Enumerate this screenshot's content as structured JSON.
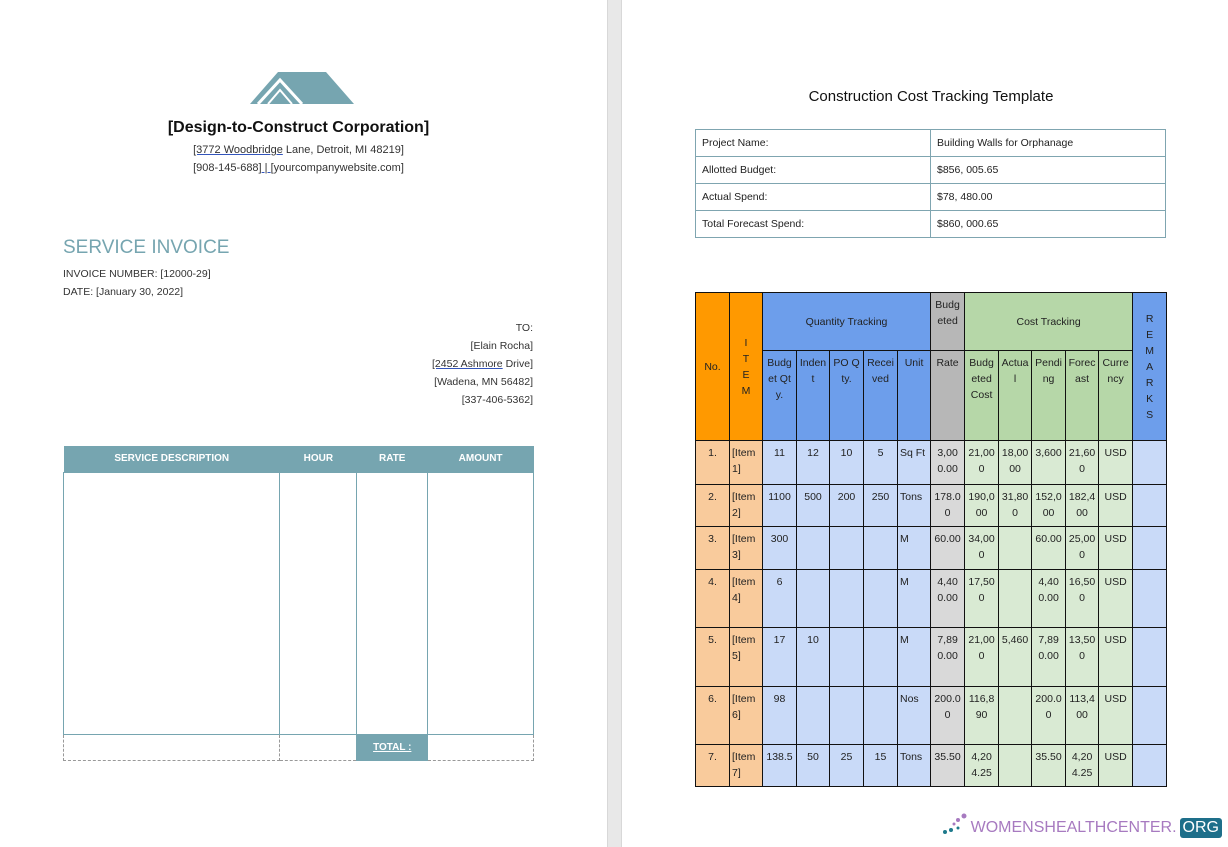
{
  "invoice": {
    "company": "[Design-to-Construct Corporation]",
    "address_part1": "[3772  Woodbridge",
    "address_part2": " Lane, Detroit, MI 48219]",
    "phone": "[908-145-688]",
    "separator": " | ",
    "website": " [yourcompanywebsite.com]",
    "title": "SERVICE INVOICE",
    "invoice_number": "INVOICE NUMBER: [12000-29]",
    "date": "DATE: [January 30, 2022]",
    "to": {
      "label": "TO:",
      "name": "[Elain Rocha]",
      "street_part1": "[2452  Ashmore",
      "street_part2": " Drive]",
      "city": "[Wadena, MN 56482]",
      "phone": "[337-406-5362]"
    },
    "columns": [
      "SERVICE DESCRIPTION",
      "HOUR",
      "RATE",
      "AMOUNT"
    ],
    "total_label": "TOTAL :",
    "brand_color": "#76a5b0"
  },
  "tracker": {
    "title": "Construction Cost Tracking Template",
    "info": [
      {
        "label": "Project Name:",
        "value": "Building Walls for Orphanage"
      },
      {
        "label": "Allotted Budget:",
        "value": "$856, 005.65"
      },
      {
        "label": "Actual Spend:",
        "value": "$78, 480.00"
      },
      {
        "label": "Total Forecast Spend:",
        "value": "$860, 000.65"
      }
    ],
    "headers": {
      "no": "No.",
      "item": "I T E M",
      "quantity_tracking": "Quantity Tracking",
      "budgeted": "Budgeted",
      "cost_tracking": "Cost Tracking",
      "remarks": "R E M A R K S",
      "budget_qty": "Budget Qty.",
      "indent": "Indent",
      "po_qty": "PO Qty.",
      "received": "Received",
      "unit": "Unit",
      "rate": "Rate",
      "budgeted_cost": "Budgeted Cost",
      "actual": "Actual",
      "pending": "Pending",
      "forecast": "Forecast",
      "currency": "Currency"
    },
    "rows": [
      {
        "no": "1.",
        "item": "[Item 1]",
        "budget_qty": "11",
        "indent": "12",
        "po_qty": "10",
        "received": "5",
        "unit": "Sq Ft",
        "rate": "3,000.00",
        "budgeted_cost": "21,000",
        "actual": "18,0000",
        "pending": "3,600",
        "forecast": "21,600",
        "currency": "USD"
      },
      {
        "no": "2.",
        "item": "[Item 2]",
        "budget_qty": "1100",
        "indent": "500",
        "po_qty": "200",
        "received": "250",
        "unit": "Tons",
        "rate": "178.00",
        "budgeted_cost": "190,000",
        "actual": "31,800",
        "pending": "152,000",
        "forecast": "182,400",
        "currency": "USD"
      },
      {
        "no": "3.",
        "item": "[Item 3]",
        "budget_qty": "300",
        "indent": "",
        "po_qty": "",
        "received": "",
        "unit": "M",
        "rate": "60.00",
        "budgeted_cost": "34,000",
        "actual": "",
        "pending": "60.00",
        "forecast": "25,000",
        "currency": "USD"
      },
      {
        "no": "4.",
        "item": "[Item 4]",
        "budget_qty": "6",
        "indent": "",
        "po_qty": "",
        "received": "",
        "unit": "M",
        "rate": "4,400.00",
        "budgeted_cost": "17,500",
        "actual": "",
        "pending": "4,400.00",
        "forecast": "16,500",
        "currency": "USD"
      },
      {
        "no": "5.",
        "item": "[Item 5]",
        "budget_qty": "17",
        "indent": "10",
        "po_qty": "",
        "received": "",
        "unit": "M",
        "rate": "7,890.00",
        "budgeted_cost": "21,000",
        "actual": "5,460",
        "pending": "7,890.00",
        "forecast": "13,500",
        "currency": "USD"
      },
      {
        "no": "6.",
        "item": "[Item 6]",
        "budget_qty": "98",
        "indent": "",
        "po_qty": "",
        "received": "",
        "unit": "Nos",
        "rate": "200.00",
        "budgeted_cost": "116,890",
        "actual": "",
        "pending": "200.00",
        "forecast": "113,400",
        "currency": "USD"
      },
      {
        "no": "7.",
        "item": "[Item 7]",
        "budget_qty": "138.5",
        "indent": "50",
        "po_qty": "25",
        "received": "15",
        "unit": "Tons",
        "rate": "35.50",
        "budgeted_cost": "4,204.25",
        "actual": "",
        "pending": "35.50",
        "forecast": "4,204.25",
        "currency": "USD"
      }
    ]
  },
  "watermark": {
    "text": "WOMENSHEALTHCENTER.",
    "suffix": "ORG"
  }
}
